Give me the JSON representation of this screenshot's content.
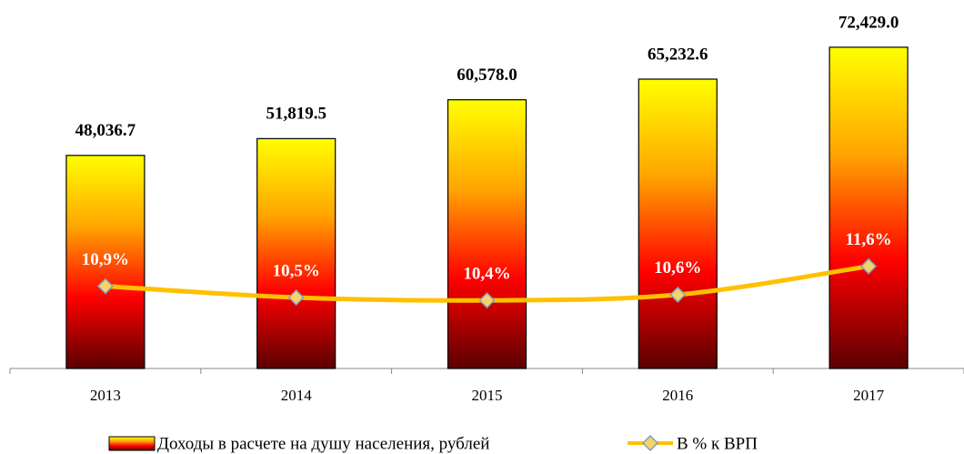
{
  "chart_data": {
    "type": "bar",
    "categories": [
      "2013",
      "2014",
      "2015",
      "2016",
      "2017"
    ],
    "series": [
      {
        "name": "Доходы в расчете на душу населения, рублей",
        "type": "bar",
        "gradient": [
          "#ffff00",
          "#ffa500",
          "#ff0000",
          "#5a0000"
        ],
        "values": [
          48036.7,
          51819.5,
          60578.0,
          65232.6,
          72429.0
        ],
        "value_labels": [
          "48,036.7",
          "51,819.5",
          "60,578.0",
          "65,232.6",
          "72,429.0"
        ]
      },
      {
        "name": "В % к ВРП",
        "type": "line",
        "axis": "y2",
        "color": "#ffc000",
        "marker_color": "#f5d36a",
        "values": [
          10.9,
          10.5,
          10.4,
          10.6,
          11.6
        ],
        "value_labels": [
          "10,9%",
          "10,5%",
          "10,4%",
          "10,6%",
          "11,6%"
        ]
      }
    ],
    "ylim": [
      0,
      80000
    ],
    "y2lim": [
      8,
      20.5
    ]
  }
}
